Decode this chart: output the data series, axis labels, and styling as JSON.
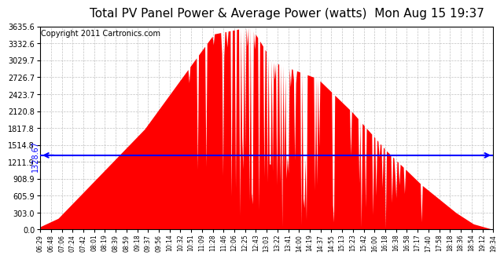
{
  "title": "Total PV Panel Power & Average Power (watts)  Mon Aug 15 19:37",
  "copyright": "Copyright 2011 Cartronics.com",
  "average_power": 1328.67,
  "y_max": 3635.6,
  "y_ticks": [
    0.0,
    303.0,
    605.9,
    908.9,
    1211.9,
    1514.8,
    1817.8,
    2120.8,
    2423.7,
    2726.7,
    3029.7,
    3332.6,
    3635.6
  ],
  "x_labels": [
    "06:29",
    "06:48",
    "07:06",
    "07:24",
    "07:42",
    "08:01",
    "08:19",
    "08:39",
    "08:59",
    "09:18",
    "09:37",
    "09:56",
    "10:14",
    "10:32",
    "10:51",
    "11:09",
    "11:28",
    "11:46",
    "12:06",
    "12:25",
    "12:43",
    "13:03",
    "13:22",
    "13:41",
    "14:00",
    "14:19",
    "14:37",
    "14:55",
    "15:13",
    "15:23",
    "15:42",
    "16:00",
    "16:18",
    "16:38",
    "16:58",
    "17:17",
    "17:40",
    "17:58",
    "18:18",
    "18:36",
    "18:54",
    "19:12",
    "19:34"
  ],
  "fill_color": "#FF0000",
  "avg_line_color": "#0000FF",
  "background_color": "#FFFFFF",
  "grid_color": "#BBBBBB",
  "title_fontsize": 11,
  "copyright_fontsize": 7
}
